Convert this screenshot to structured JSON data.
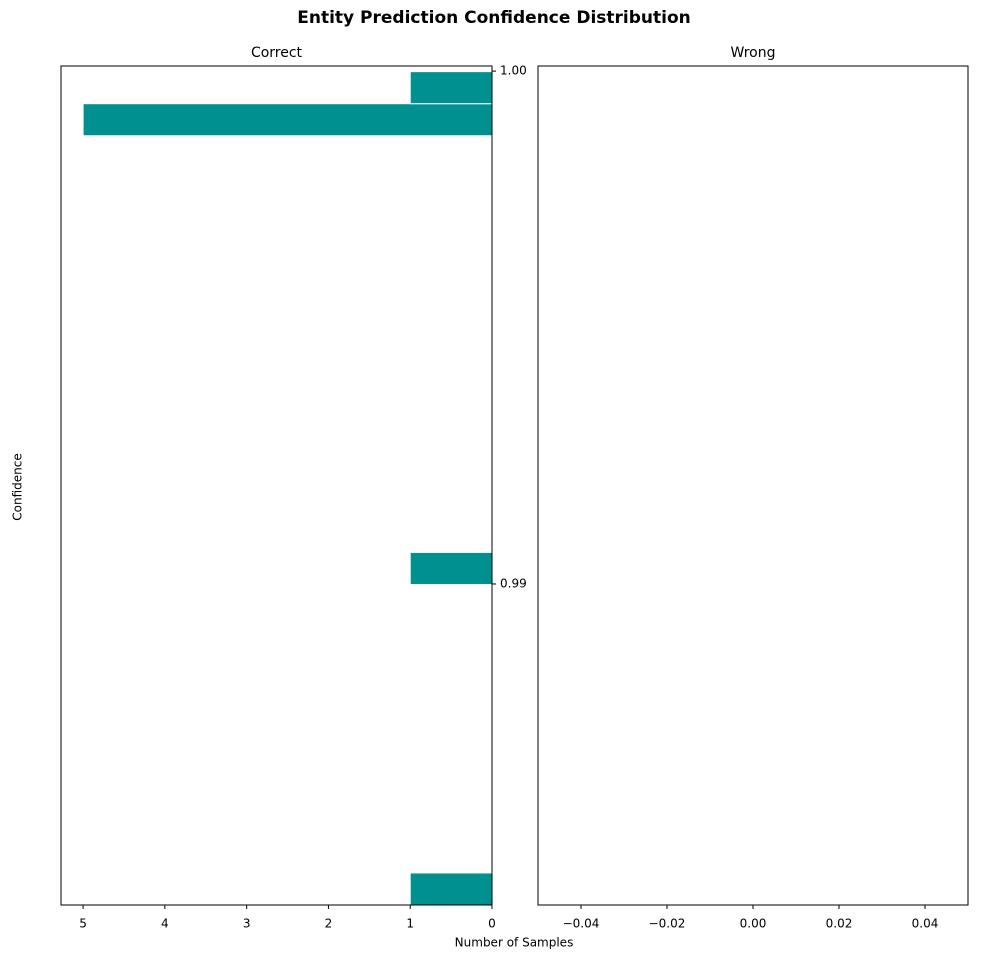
{
  "figure": {
    "title": "Entity Prediction Confidence Distribution",
    "xlabel": "Number of Samples",
    "ylabel": "Confidence"
  },
  "chart_data": [
    {
      "type": "histogram",
      "orientation": "horizontal",
      "title": "Correct",
      "color": "#009090",
      "bins": [
        0.98374,
        0.984365,
        0.98499,
        0.985615,
        0.98624,
        0.986865,
        0.98749,
        0.988115,
        0.98874,
        0.989365,
        0.98999,
        0.990615,
        0.99124,
        0.991865,
        0.99249,
        0.993115,
        0.99374,
        0.994365,
        0.99499,
        0.995615,
        0.99624,
        0.996865,
        0.99749,
        0.998115,
        0.99874,
        0.999365,
        0.99999
      ],
      "counts": [
        1,
        0,
        0,
        0,
        0,
        0,
        0,
        0,
        0,
        0,
        1,
        0,
        0,
        0,
        0,
        0,
        0,
        0,
        0,
        0,
        0,
        0,
        0,
        0,
        5,
        1
      ],
      "xlim": [
        5.27,
        0
      ],
      "xticks": [
        5,
        4,
        3,
        2,
        1,
        0
      ],
      "ylim": [
        0.98374,
        1.0001
      ],
      "yticks": [
        0.99,
        {
          "value": 1.0,
          "label": "1.00"
        }
      ]
    },
    {
      "type": "histogram",
      "orientation": "horizontal",
      "title": "Wrong",
      "color": "#009090",
      "bins": [],
      "counts": [],
      "xlim": [
        -0.05,
        0.05
      ],
      "xticks": [
        {
          "value": -0.04,
          "label": "−0.04"
        },
        {
          "value": -0.02,
          "label": "−0.02"
        },
        {
          "value": 0,
          "label": "0.00"
        },
        {
          "value": 0.02,
          "label": "0.02"
        },
        {
          "value": 0.04,
          "label": "0.04"
        }
      ]
    }
  ]
}
